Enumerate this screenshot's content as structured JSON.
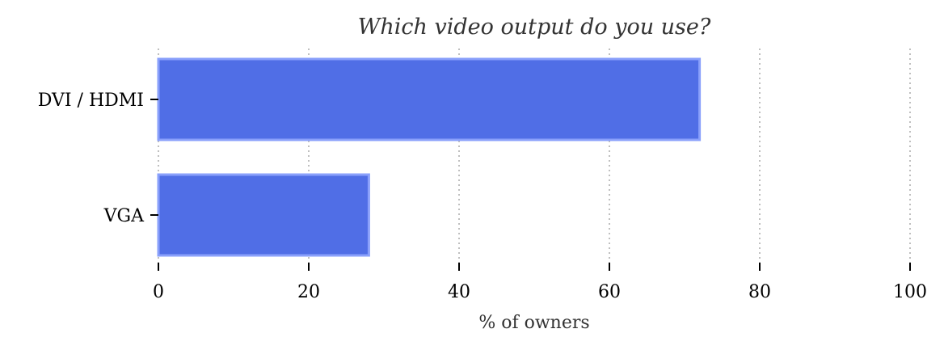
{
  "chart_data": {
    "type": "bar",
    "orientation": "horizontal",
    "title": "Which video output do you use?",
    "categories": [
      "DVI / HDMI",
      "VGA"
    ],
    "values": [
      72,
      28
    ],
    "xlabel": "% of owners",
    "ylabel": "",
    "xlim": [
      0,
      100
    ],
    "xticks": [
      "0",
      "20",
      "40",
      "60",
      "80",
      "100"
    ],
    "grid": "x, dotted",
    "colors": {
      "bar_fill": "#506ee6",
      "bar_edge": "#8aa0fb",
      "grid": "#aaaaaa",
      "text": "#333333"
    }
  }
}
